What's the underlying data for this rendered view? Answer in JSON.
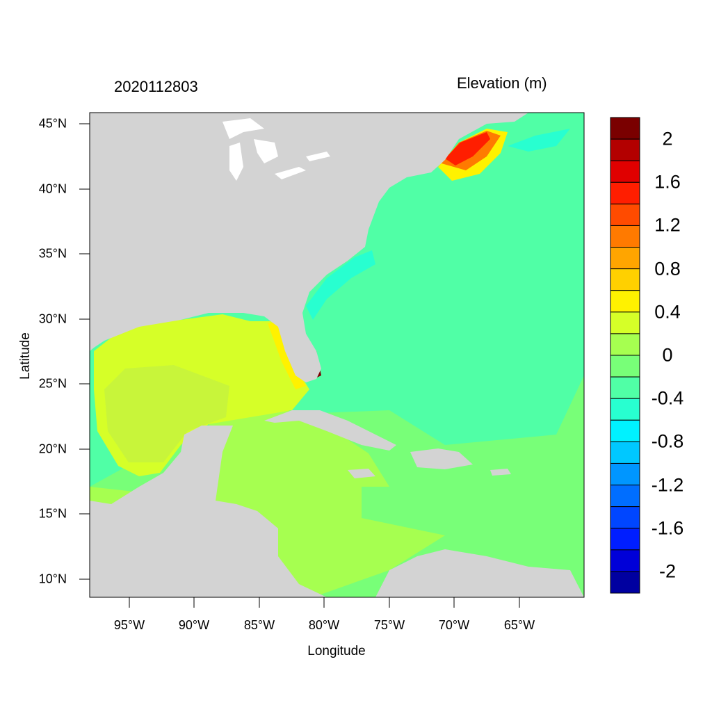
{
  "title_left": "2020112803",
  "title_right": "Elevation (m)",
  "xlabel": "Longitude",
  "ylabel": "Latitude",
  "lon_ticks": [
    "95°W",
    "90°W",
    "85°W",
    "80°W",
    "75°W",
    "70°W",
    "65°W"
  ],
  "lat_ticks": [
    "45°N",
    "40°N",
    "35°N",
    "30°N",
    "25°N",
    "20°N",
    "15°N",
    "10°N"
  ],
  "colorbar": {
    "labels": [
      "2",
      "1.6",
      "1.2",
      "0.8",
      "0.4",
      "0",
      "-0.4",
      "-0.8",
      "-1.2",
      "-1.6",
      "-2"
    ],
    "colors": [
      "#7a0000",
      "#b30000",
      "#e00000",
      "#ff1e00",
      "#ff4b00",
      "#ff7a00",
      "#ffa500",
      "#ffd000",
      "#fff200",
      "#d6ff28",
      "#a6ff50",
      "#78ff78",
      "#50ffa6",
      "#28ffd0",
      "#00f2ff",
      "#00c8ff",
      "#0096ff",
      "#006eff",
      "#0046ff",
      "#001eff",
      "#0000d8",
      "#0000a0"
    ]
  },
  "colors": {
    "land": "#d3d3d3",
    "lakes": "#ffffff"
  }
}
